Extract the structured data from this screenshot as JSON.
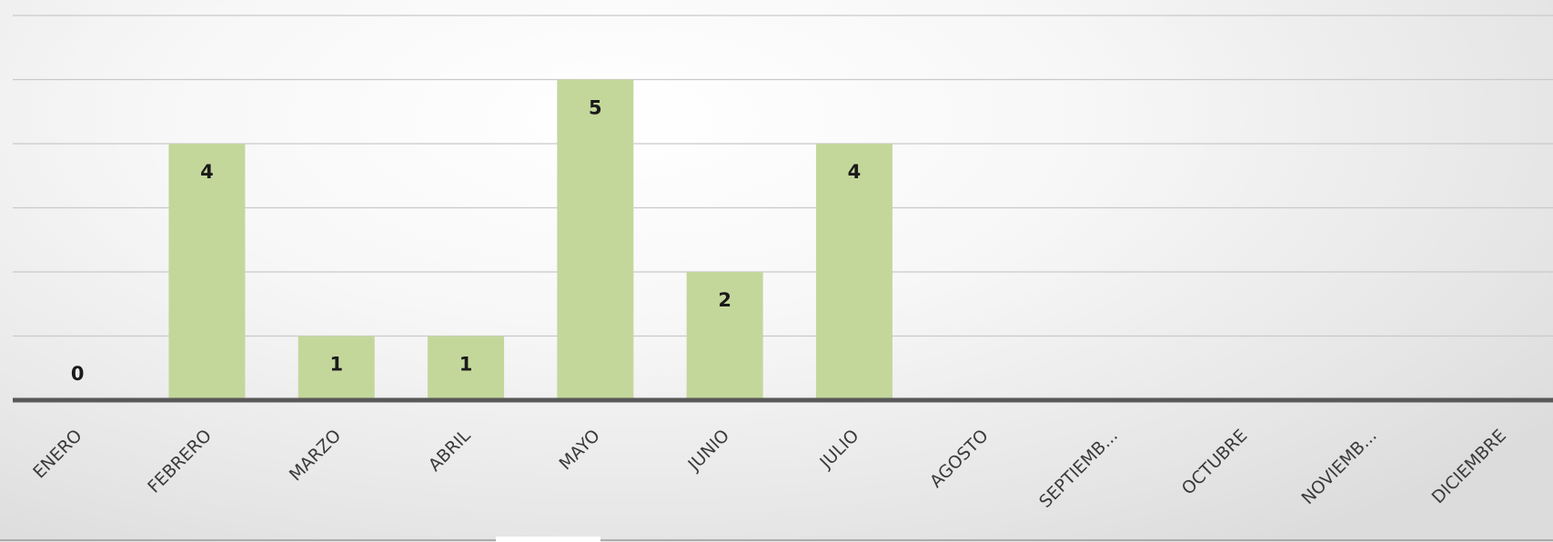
{
  "chart_data": {
    "type": "bar",
    "title": "",
    "xlabel": "",
    "ylabel": "",
    "categories": [
      "ENERO",
      "FEBRERO",
      "MARZO",
      "ABRIL",
      "MAYO",
      "JUNIO",
      "JULIO",
      "AGOSTO",
      "SEPTIEMB...",
      "OCTUBRE",
      "NOVIEMB...",
      "DICIEMBRE"
    ],
    "values": [
      0,
      4,
      1,
      1,
      5,
      2,
      4,
      null,
      null,
      null,
      null,
      null
    ],
    "ylim": [
      0,
      6
    ],
    "grid": true,
    "legend": "none",
    "bar_color": "#c4d79b",
    "axis_color": "#595959",
    "gridline_color": "#c9c9c9"
  }
}
